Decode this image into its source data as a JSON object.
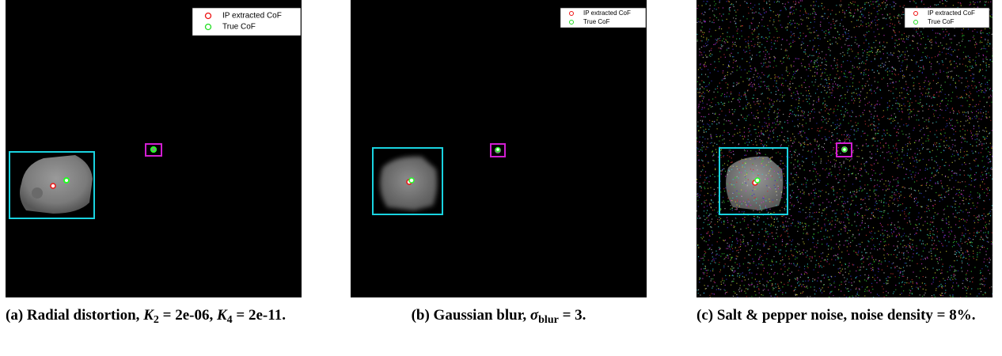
{
  "legend": [
    "IP extracted CoF",
    "True CoF"
  ],
  "panels": [
    {
      "caption": [
        "(a) Radial distortion, ",
        "K",
        "2",
        " = 2e-06, ",
        "K",
        "4",
        " = 2e-11."
      ]
    },
    {
      "caption": [
        "(b) Gaussian blur, ",
        "σ",
        "blur",
        " = 3."
      ]
    },
    {
      "caption": [
        "(c) Salt & pepper noise, noise density = 8%."
      ]
    }
  ]
}
